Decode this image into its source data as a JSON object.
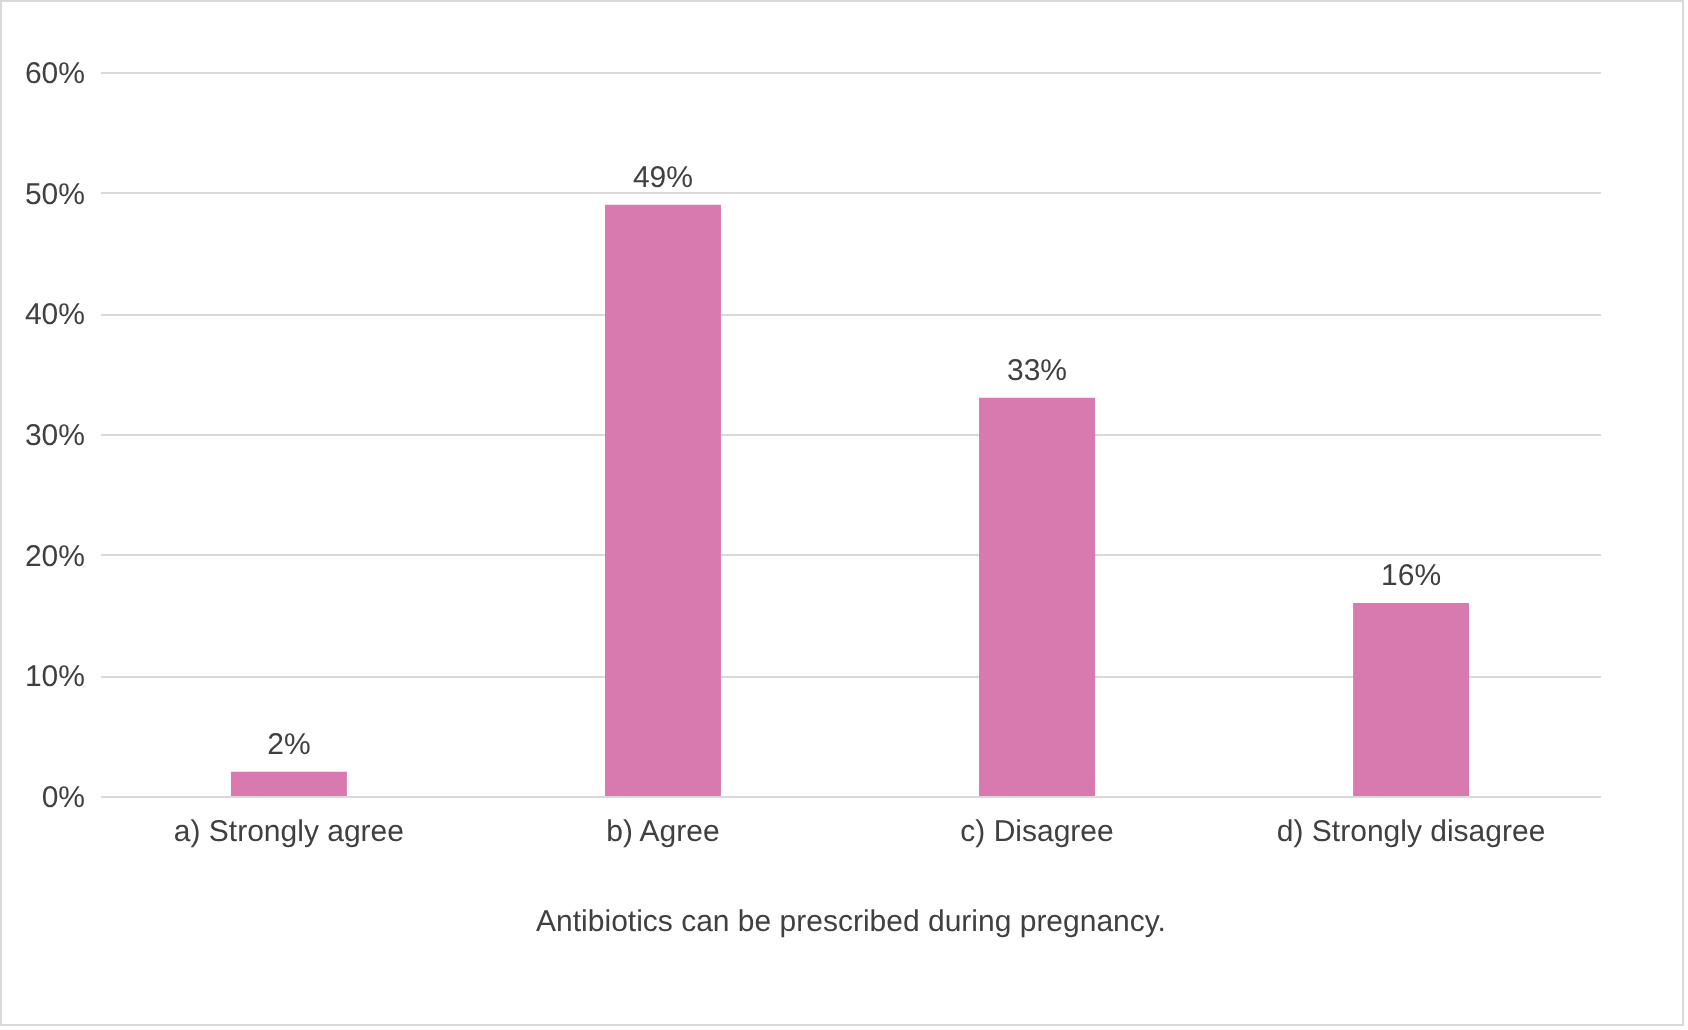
{
  "chart_data": {
    "type": "bar",
    "xlabel": "Antibiotics can be prescribed during pregnancy.",
    "categories": [
      "a)    Strongly agree",
      "b)    Agree",
      "c)    Disagree",
      "d)    Strongly disagree"
    ],
    "values": [
      2,
      49,
      33,
      16
    ],
    "color": "#d87aaf",
    "value_labels": [
      "2%",
      "49%",
      "33%",
      "16%"
    ],
    "ylim": [
      0,
      60
    ],
    "yticks": [
      {
        "value": 0,
        "label": "0%"
      },
      {
        "value": 10,
        "label": "10%"
      },
      {
        "value": 20,
        "label": "20%"
      },
      {
        "value": 30,
        "label": "30%"
      },
      {
        "value": 40,
        "label": "40%"
      },
      {
        "value": 50,
        "label": "50%"
      },
      {
        "value": 60,
        "label": "60%"
      }
    ],
    "grid": "y"
  }
}
